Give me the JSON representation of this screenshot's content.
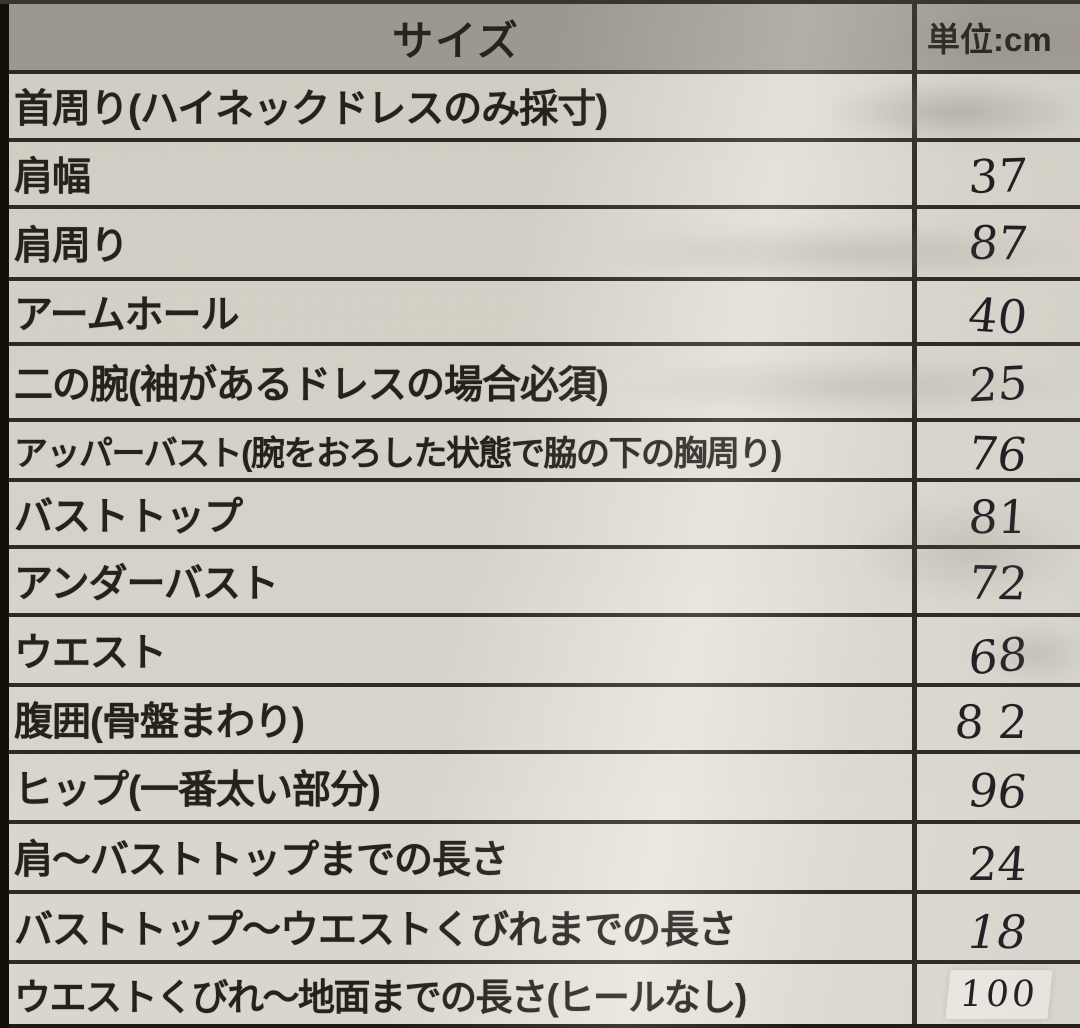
{
  "document": {
    "type_label": "size-measurement-table",
    "header": {
      "size_label": "サイズ",
      "unit_label": "単位:cm"
    },
    "rows": [
      {
        "label": "首周り(ハイネックドレスのみ採寸)",
        "value": ""
      },
      {
        "label": "肩幅",
        "value": "37"
      },
      {
        "label": "肩周り",
        "value": "87"
      },
      {
        "label": "アームホール",
        "value": "40"
      },
      {
        "label": "二の腕(袖があるドレスの場合必須)",
        "value": "25"
      },
      {
        "label": "アッパーバスト(腕をおろした状態で脇の下の胸周り)",
        "value": "76"
      },
      {
        "label": "バストトップ",
        "value": "81"
      },
      {
        "label": "アンダーバスト",
        "value": "72"
      },
      {
        "label": "ウエスト",
        "value": "68"
      },
      {
        "label": "腹囲(骨盤まわり)",
        "value": "82"
      },
      {
        "label": "ヒップ(一番太い部分)",
        "value": "96"
      },
      {
        "label": "肩〜バストトップまでの長さ",
        "value": "24"
      },
      {
        "label": "バストトップ〜ウエストくびれまでの長さ",
        "value": "18"
      },
      {
        "label": "ウエストくびれ〜地面までの長さ(ヒールなし)",
        "value": "100"
      }
    ],
    "unit": "cm",
    "colors": {
      "paper": "#e4e2d9",
      "header_gray": "#a39f99",
      "border": "#2a2420",
      "ink": "#1f1b17",
      "handwriting_ink": "#1b161d",
      "whiteout_patch": "#f7f5ef"
    }
  }
}
